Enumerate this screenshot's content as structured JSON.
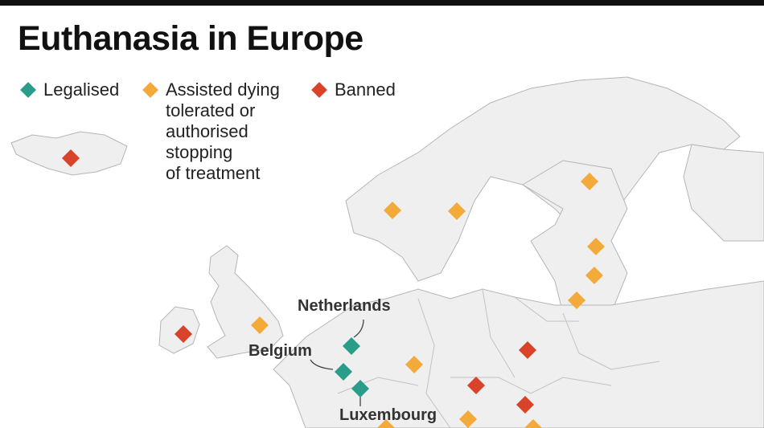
{
  "title": "Euthanasia in Europe",
  "legend": [
    {
      "key": "legalised",
      "label": "Legalised",
      "color": "#2a9d8a"
    },
    {
      "key": "tolerated",
      "label": "Assisted dying\ntolerated or\nauthorised\nstopping\nof treatment",
      "color": "#f4a93b"
    },
    {
      "key": "banned",
      "label": "Banned",
      "color": "#d8432a"
    }
  ],
  "labels": {
    "netherlands": "Netherlands",
    "belgium": "Belgium",
    "luxembourg": "Luxembourg"
  },
  "markers": [
    {
      "status": "banned"
    },
    {
      "status": "tolerated"
    },
    {
      "status": "tolerated"
    },
    {
      "status": "tolerated"
    },
    {
      "status": "tolerated"
    },
    {
      "status": "tolerated"
    },
    {
      "status": "tolerated"
    },
    {
      "status": "banned"
    },
    {
      "status": "tolerated"
    },
    {
      "status": "legalised",
      "label": "Netherlands"
    },
    {
      "status": "legalised",
      "label": "Belgium"
    },
    {
      "status": "legalised",
      "label": "Luxembourg"
    },
    {
      "status": "tolerated"
    },
    {
      "status": "banned"
    },
    {
      "status": "banned"
    },
    {
      "status": "banned"
    },
    {
      "status": "tolerated"
    },
    {
      "status": "tolerated"
    },
    {
      "status": "tolerated"
    }
  ],
  "colors": {
    "land": "#efefef",
    "border": "#b5b5b5",
    "sea": "#ffffff"
  }
}
